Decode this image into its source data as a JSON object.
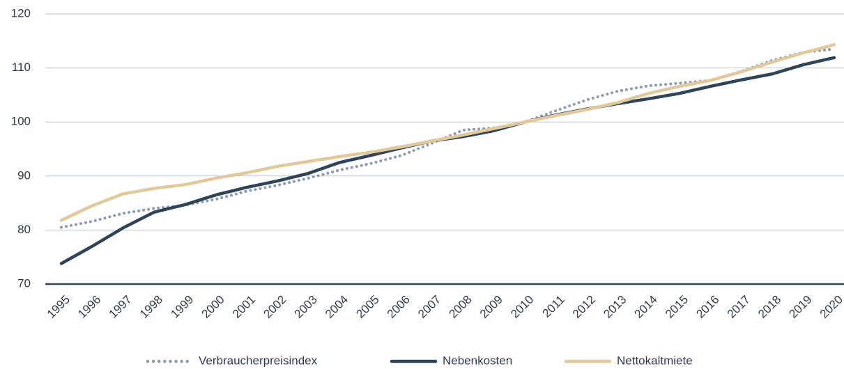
{
  "chart_data": {
    "type": "line",
    "categories": [
      "1995",
      "1996",
      "1997",
      "1998",
      "1999",
      "2000",
      "2001",
      "2002",
      "2003",
      "2004",
      "2005",
      "2006",
      "2007",
      "2008",
      "2009",
      "2010",
      "2011",
      "2012",
      "2013",
      "2014",
      "2015",
      "2016",
      "2017",
      "2018",
      "2019",
      "2020"
    ],
    "series": [
      {
        "name": "Verbraucherpreisindex",
        "color": "#8c9cad",
        "style": "dotted",
        "values": [
          80.5,
          81.6,
          83.1,
          84,
          84.6,
          85.7,
          87.2,
          88.3,
          89.6,
          91.1,
          92.3,
          93.8,
          96.1,
          98.5,
          98.9,
          100,
          102.1,
          104.1,
          105.7,
          106.7,
          107.2,
          107.7,
          109.4,
          111.4,
          112.9,
          113.5
        ]
      },
      {
        "name": "Nebenkosten",
        "color": "#2f4359",
        "style": "solid",
        "values": [
          73.8,
          77,
          80.4,
          83.3,
          84.7,
          86.5,
          87.9,
          89.1,
          90.5,
          92.5,
          93.8,
          95.2,
          96.5,
          97.3,
          98.4,
          100,
          101.3,
          102.4,
          103.4,
          104.3,
          105.3,
          106.6,
          107.8,
          108.9,
          110.6,
          111.9
        ]
      },
      {
        "name": "Nettokaltmiete",
        "color": "#e2c99b",
        "style": "solid",
        "values": [
          81.8,
          84.5,
          86.7,
          87.7,
          88.4,
          89.6,
          90.6,
          91.8,
          92.7,
          93.6,
          94.4,
          95.4,
          96.5,
          97.6,
          98.8,
          100,
          101.2,
          102.3,
          103.6,
          105.3,
          106.6,
          107.7,
          109.3,
          111.1,
          112.8,
          114.3
        ]
      }
    ],
    "ylim": [
      70,
      120
    ],
    "yticks": [
      70,
      80,
      90,
      100,
      110,
      120
    ],
    "grid": true,
    "legend": "bottom"
  }
}
